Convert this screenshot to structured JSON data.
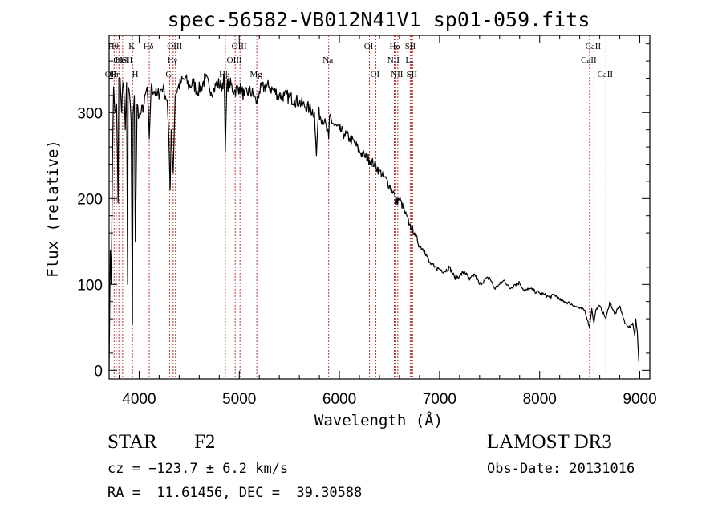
{
  "chart_data": {
    "type": "line",
    "title": "spec-56582-VB012N41V1_sp01-059.fits",
    "xlabel": "Wavelength (Å)",
    "ylabel": "Flux (relative)",
    "xlim": [
      3700,
      9100
    ],
    "ylim": [
      -10,
      390
    ],
    "xticks": [
      4000,
      5000,
      6000,
      7000,
      8000,
      9000
    ],
    "xtick_labels": [
      "4000",
      "5000",
      "6000",
      "7000",
      "8000",
      "9000"
    ],
    "yticks": [
      0,
      100,
      200,
      300
    ],
    "ytick_labels": [
      "0",
      "100",
      "200",
      "300"
    ],
    "grid": false,
    "series": [
      {
        "name": "flux",
        "points": [
          [
            3700,
            0
          ],
          [
            3712,
            140
          ],
          [
            3722,
            100
          ],
          [
            3735,
            260
          ],
          [
            3745,
            330
          ],
          [
            3760,
            300
          ],
          [
            3775,
            310
          ],
          [
            3790,
            195
          ],
          [
            3798,
            340
          ],
          [
            3810,
            340
          ],
          [
            3825,
            300
          ],
          [
            3838,
            335
          ],
          [
            3850,
            320
          ],
          [
            3862,
            280
          ],
          [
            3875,
            335
          ],
          [
            3885,
            100
          ],
          [
            3890,
            330
          ],
          [
            3905,
            320
          ],
          [
            3920,
            290
          ],
          [
            3933,
            55
          ],
          [
            3940,
            300
          ],
          [
            3952,
            320
          ],
          [
            3962,
            150
          ],
          [
            3968,
            200
          ],
          [
            3980,
            310
          ],
          [
            4000,
            295
          ],
          [
            4020,
            300
          ],
          [
            4050,
            310
          ],
          [
            4080,
            330
          ],
          [
            4101,
            270
          ],
          [
            4120,
            330
          ],
          [
            4150,
            325
          ],
          [
            4180,
            320
          ],
          [
            4210,
            325
          ],
          [
            4240,
            330
          ],
          [
            4260,
            320
          ],
          [
            4280,
            315
          ],
          [
            4300,
            255
          ],
          [
            4310,
            210
          ],
          [
            4320,
            280
          ],
          [
            4340,
            230
          ],
          [
            4360,
            320
          ],
          [
            4390,
            330
          ],
          [
            4420,
            335
          ],
          [
            4460,
            340
          ],
          [
            4500,
            330
          ],
          [
            4540,
            335
          ],
          [
            4580,
            325
          ],
          [
            4620,
            330
          ],
          [
            4660,
            340
          ],
          [
            4700,
            330
          ],
          [
            4740,
            325
          ],
          [
            4780,
            335
          ],
          [
            4820,
            330
          ],
          [
            4850,
            340
          ],
          [
            4861,
            255
          ],
          [
            4875,
            330
          ],
          [
            4900,
            335
          ],
          [
            4950,
            325
          ],
          [
            5000,
            330
          ],
          [
            5050,
            320
          ],
          [
            5100,
            325
          ],
          [
            5150,
            320
          ],
          [
            5170,
            310
          ],
          [
            5200,
            325
          ],
          [
            5250,
            330
          ],
          [
            5300,
            330
          ],
          [
            5350,
            325
          ],
          [
            5400,
            320
          ],
          [
            5450,
            320
          ],
          [
            5500,
            318
          ],
          [
            5550,
            315
          ],
          [
            5600,
            312
          ],
          [
            5650,
            308
          ],
          [
            5700,
            305
          ],
          [
            5750,
            300
          ],
          [
            5770,
            250
          ],
          [
            5790,
            300
          ],
          [
            5850,
            290
          ],
          [
            5893,
            270
          ],
          [
            5900,
            295
          ],
          [
            5950,
            285
          ],
          [
            6000,
            280
          ],
          [
            6050,
            275
          ],
          [
            6100,
            270
          ],
          [
            6150,
            265
          ],
          [
            6200,
            255
          ],
          [
            6250,
            250
          ],
          [
            6300,
            245
          ],
          [
            6350,
            240
          ],
          [
            6400,
            232
          ],
          [
            6450,
            225
          ],
          [
            6500,
            215
          ],
          [
            6550,
            205
          ],
          [
            6563,
            195
          ],
          [
            6600,
            200
          ],
          [
            6650,
            185
          ],
          [
            6700,
            170
          ],
          [
            6750,
            160
          ],
          [
            6800,
            145
          ],
          [
            6850,
            140
          ],
          [
            6900,
            125
          ],
          [
            6950,
            120
          ],
          [
            7000,
            118
          ],
          [
            7050,
            115
          ],
          [
            7100,
            120
          ],
          [
            7150,
            108
          ],
          [
            7200,
            110
          ],
          [
            7250,
            115
          ],
          [
            7300,
            105
          ],
          [
            7350,
            112
          ],
          [
            7400,
            100
          ],
          [
            7450,
            105
          ],
          [
            7500,
            108
          ],
          [
            7550,
            95
          ],
          [
            7600,
            100
          ],
          [
            7650,
            105
          ],
          [
            7700,
            95
          ],
          [
            7750,
            100
          ],
          [
            7800,
            102
          ],
          [
            7850,
            92
          ],
          [
            7900,
            95
          ],
          [
            7950,
            92
          ],
          [
            8000,
            90
          ],
          [
            8050,
            88
          ],
          [
            8100,
            85
          ],
          [
            8150,
            88
          ],
          [
            8200,
            82
          ],
          [
            8250,
            80
          ],
          [
            8300,
            78
          ],
          [
            8350,
            75
          ],
          [
            8400,
            72
          ],
          [
            8450,
            70
          ],
          [
            8498,
            50
          ],
          [
            8520,
            72
          ],
          [
            8542,
            55
          ],
          [
            8560,
            70
          ],
          [
            8600,
            75
          ],
          [
            8662,
            60
          ],
          [
            8700,
            80
          ],
          [
            8750,
            65
          ],
          [
            8800,
            75
          ],
          [
            8850,
            55
          ],
          [
            8900,
            50
          ],
          [
            8930,
            55
          ],
          [
            8950,
            40
          ],
          [
            8960,
            60
          ],
          [
            8975,
            45
          ],
          [
            8990,
            10
          ]
        ]
      }
    ],
    "lines": [
      {
        "wl": 3727,
        "label": "OII",
        "row": 3
      },
      {
        "wl": 3750,
        "label": "Hθ",
        "row": 1
      },
      {
        "wl": 3771,
        "label": "Hη",
        "row": 3
      },
      {
        "wl": 3798,
        "label": "OI",
        "row": 2
      },
      {
        "wl": 3835,
        "label": "HeI",
        "row": 2
      },
      {
        "wl": 3889,
        "label": "SII",
        "row": 2
      },
      {
        "wl": 3934,
        "label": "K",
        "row": 1
      },
      {
        "wl": 3968,
        "label": "H",
        "row": 3
      },
      {
        "wl": 4101,
        "label": "Hδ",
        "row": 1
      },
      {
        "wl": 4304,
        "label": "G",
        "row": 3
      },
      {
        "wl": 4340,
        "label": "Hγ",
        "row": 2
      },
      {
        "wl": 4363,
        "label": "OIII",
        "row": 1
      },
      {
        "wl": 4861,
        "label": "Hβ",
        "row": 3
      },
      {
        "wl": 4959,
        "label": "OIII",
        "row": 2
      },
      {
        "wl": 5007,
        "label": "OIII",
        "row": 1
      },
      {
        "wl": 5175,
        "label": "Mg",
        "row": 3
      },
      {
        "wl": 5893,
        "label": "Na",
        "row": 2
      },
      {
        "wl": 6300,
        "label": "OI",
        "row": 1
      },
      {
        "wl": 6363,
        "label": "OI",
        "row": 3
      },
      {
        "wl": 6548,
        "label": "NII",
        "row": 2
      },
      {
        "wl": 6563,
        "label": "Hα",
        "row": 1
      },
      {
        "wl": 6583,
        "label": "NII",
        "row": 3
      },
      {
        "wl": 6707,
        "label": "Li",
        "row": 2
      },
      {
        "wl": 6716,
        "label": "SII",
        "row": 1
      },
      {
        "wl": 6731,
        "label": "SII",
        "row": 3
      },
      {
        "wl": 8498,
        "label": "CaII",
        "row": 2
      },
      {
        "wl": 8542,
        "label": "CaII",
        "row": 1
      },
      {
        "wl": 8662,
        "label": "CaII",
        "row": 3
      }
    ]
  },
  "footer": {
    "object_class": "STAR",
    "subclass": "F2",
    "survey": "LAMOST DR3",
    "cz": "cz = −123.7 ± 6.2 km/s",
    "obs_date": "Obs-Date: 20131016",
    "coords": "RA =  11.61456, DEC =  39.30588"
  }
}
